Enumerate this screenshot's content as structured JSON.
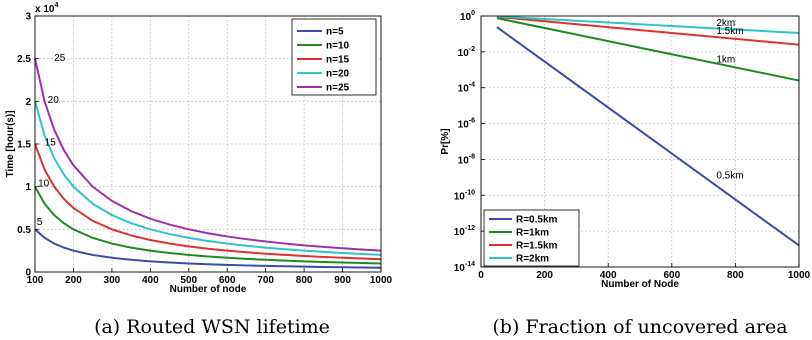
{
  "chart_data": [
    {
      "type": "line",
      "caption": "(a) Routed WSN lifetime",
      "xlabel": "Number of node",
      "ylabel": "Time [hour(s)]",
      "exponent_label": "x 10",
      "exponent_power": "4",
      "xlim": [
        100,
        1000
      ],
      "ylim": [
        0,
        30000
      ],
      "xticks": [
        100,
        200,
        300,
        400,
        500,
        600,
        700,
        800,
        900,
        1000
      ],
      "yticks": [
        0,
        5000,
        10000,
        15000,
        20000,
        25000,
        30000
      ],
      "ytick_labels": [
        "0",
        "0.5",
        "1",
        "1.5",
        "2",
        "2.5",
        "3"
      ],
      "grid": true,
      "legend_position": "top-right",
      "x": [
        100,
        125,
        150,
        175,
        200,
        250,
        300,
        350,
        400,
        450,
        500,
        550,
        600,
        650,
        700,
        750,
        800,
        850,
        900,
        950,
        1000
      ],
      "series": [
        {
          "name": "n=5",
          "color": "#3b4ba7",
          "values": [
            5000,
            4000,
            3333,
            2857,
            2500,
            2000,
            1667,
            1429,
            1250,
            1111,
            1000,
            909,
            833,
            769,
            714,
            667,
            625,
            588,
            556,
            526,
            500
          ]
        },
        {
          "name": "n=10",
          "color": "#1f8a1f",
          "values": [
            10000,
            8000,
            6667,
            5714,
            5000,
            4000,
            3333,
            2857,
            2500,
            2222,
            2000,
            1818,
            1667,
            1538,
            1429,
            1333,
            1250,
            1176,
            1111,
            1053,
            1000
          ]
        },
        {
          "name": "n=15",
          "color": "#e03030",
          "values": [
            15000,
            12000,
            10000,
            8571,
            7500,
            6000,
            5000,
            4286,
            3750,
            3333,
            3000,
            2727,
            2500,
            2308,
            2143,
            2000,
            1875,
            1765,
            1667,
            1579,
            1500
          ]
        },
        {
          "name": "n=20",
          "color": "#2fc4c4",
          "values": [
            20000,
            16000,
            13333,
            11429,
            10000,
            8000,
            6667,
            5714,
            5000,
            4444,
            4000,
            3636,
            3333,
            3077,
            2857,
            2667,
            2500,
            2353,
            2222,
            2105,
            2000
          ]
        },
        {
          "name": "n=25",
          "color": "#a030a8",
          "values": [
            25000,
            20000,
            16667,
            14286,
            12500,
            10000,
            8333,
            7143,
            6250,
            5556,
            5000,
            4545,
            4167,
            3846,
            3571,
            3333,
            3125,
            2941,
            2778,
            2632,
            2500
          ]
        }
      ],
      "annotations": [
        {
          "text": "5",
          "x": 105,
          "y": 5500
        },
        {
          "text": "10",
          "x": 108,
          "y": 10000
        },
        {
          "text": "15",
          "x": 125,
          "y": 14800
        },
        {
          "text": "20",
          "x": 133,
          "y": 19800
        },
        {
          "text": "25",
          "x": 150,
          "y": 24700
        }
      ]
    },
    {
      "type": "line",
      "caption": "(b) Fraction of uncovered area",
      "xlabel": "Number of Node",
      "ylabel": "Pr[%]",
      "xscale": "linear",
      "yscale": "log",
      "xlim": [
        0,
        1000
      ],
      "ylim_exp": [
        -14,
        0
      ],
      "xticks": [
        0,
        200,
        400,
        600,
        800,
        1000
      ],
      "ytick_exps": [
        0,
        -2,
        -4,
        -6,
        -8,
        -10,
        -12,
        -14
      ],
      "grid": true,
      "legend_position": "bottom-left",
      "x": [
        50,
        1000
      ],
      "series": [
        {
          "name": "R=0.5km",
          "color": "#3b4ba7",
          "log10_values": [
            -0.62,
            -12.8
          ]
        },
        {
          "name": "R=1km",
          "color": "#1f8a1f",
          "log10_values": [
            -0.12,
            -3.6
          ]
        },
        {
          "name": "R=1.5km",
          "color": "#e03030",
          "log10_values": [
            -0.05,
            -1.6
          ]
        },
        {
          "name": "R=2km",
          "color": "#2fc4c4",
          "log10_values": [
            -0.02,
            -0.95
          ]
        }
      ],
      "annotations": [
        {
          "text": "2km",
          "x": 740,
          "y_exp": -0.55
        },
        {
          "text": "1.5km",
          "x": 740,
          "y_exp": -1.0
        },
        {
          "text": "1km",
          "x": 740,
          "y_exp": -2.6
        },
        {
          "text": "0.5km",
          "x": 740,
          "y_exp": -9.05
        }
      ]
    }
  ]
}
